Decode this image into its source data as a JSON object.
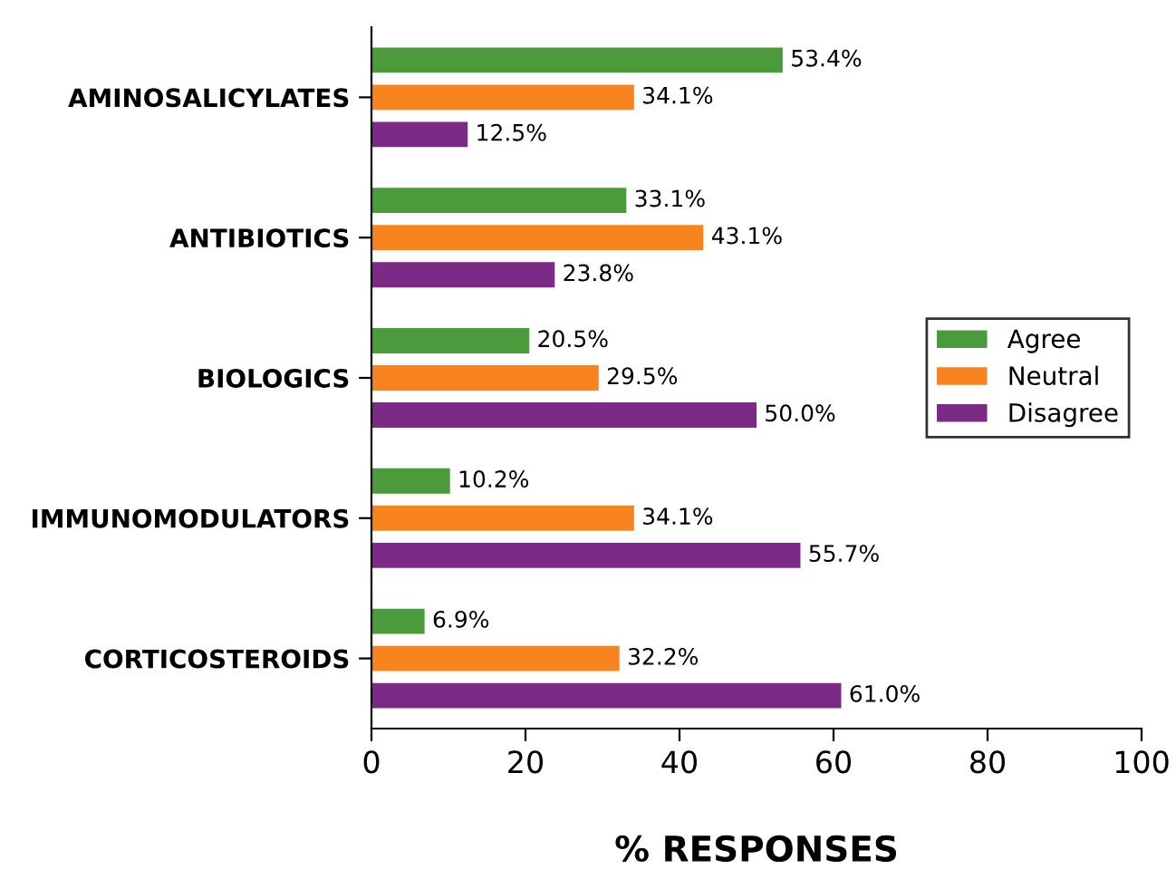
{
  "chart_data": {
    "type": "bar",
    "orientation": "horizontal",
    "xlabel": "% RESPONSES",
    "categories": [
      "AMINOSALICYLATES",
      "ANTIBIOTICS",
      "BIOLOGICS",
      "IMMUNOMODULATORS",
      "CORTICOSTEROIDS"
    ],
    "series": [
      {
        "name": "Agree",
        "color": "#4b9a3b",
        "values": [
          53.4,
          33.1,
          20.5,
          10.2,
          6.9
        ],
        "value_labels": [
          "53.4%",
          "33.1%",
          "20.5%",
          "10.2%",
          "6.9%"
        ]
      },
      {
        "name": "Neutral",
        "color": "#f7841f",
        "values": [
          34.1,
          43.1,
          29.5,
          34.1,
          32.2
        ],
        "value_labels": [
          "34.1%",
          "43.1%",
          "29.5%",
          "34.1%",
          "32.2%"
        ]
      },
      {
        "name": "Disagree",
        "color": "#7b2a86",
        "values": [
          12.5,
          23.8,
          50.0,
          55.7,
          61.0
        ],
        "value_labels": [
          "12.5%",
          "23.8%",
          "50.0%",
          "55.7%",
          "61.0%"
        ]
      }
    ],
    "xlim": [
      0,
      100
    ],
    "xticks": [
      0,
      20,
      40,
      60,
      80,
      100
    ],
    "grid": false,
    "legend": "right"
  }
}
